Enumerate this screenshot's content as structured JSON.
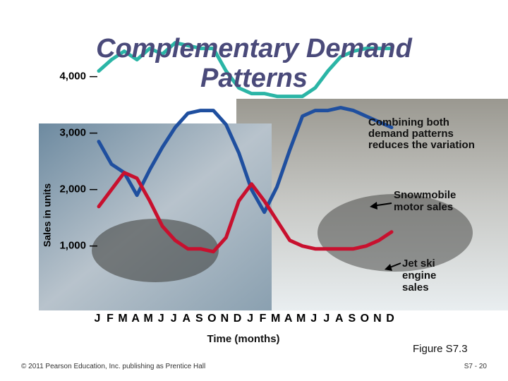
{
  "chart_data": {
    "type": "line",
    "title": "Complementary Demand Patterns",
    "y_label": "Sales in units",
    "x_label": "Time (months)",
    "annotation": "Combining both demand patterns reduces the variation",
    "categories": [
      "J",
      "F",
      "M",
      "A",
      "M",
      "J",
      "J",
      "A",
      "S",
      "O",
      "N",
      "D",
      "J",
      "F",
      "M",
      "A",
      "M",
      "J",
      "J",
      "A",
      "S",
      "O",
      "N",
      "D"
    ],
    "series": [
      {
        "color": "#2bb5a6",
        "values": [
          4100,
          4300,
          4450,
          4300,
          4500,
          4400,
          4600,
          4550,
          4500,
          4500,
          4100,
          3800,
          3700,
          3700,
          3650,
          3650,
          3650,
          3800,
          4100,
          4350,
          4450,
          4500,
          4500,
          4500
        ]
      },
      {
        "name": "Snowmobile motor sales",
        "color": "#1f4f9f",
        "values": [
          2850,
          2450,
          2300,
          1900,
          2350,
          2750,
          3100,
          3350,
          3400,
          3400,
          3150,
          2650,
          2000,
          1600,
          2050,
          2700,
          3300,
          3400,
          3400,
          3450,
          3400,
          3300,
          3200,
          3100
        ]
      },
      {
        "name": "Jet ski engine sales",
        "color": "#c8102e",
        "values": [
          1700,
          2000,
          2300,
          2200,
          1800,
          1350,
          1100,
          950,
          950,
          900,
          1150,
          1800,
          2100,
          1800,
          1450,
          1100,
          1000,
          950,
          950,
          950,
          950,
          1000,
          1100,
          1250
        ]
      }
    ],
    "ylim": [
      0,
      5000
    ],
    "yticks": [
      {
        "value": 1000,
        "label": "1,000"
      },
      {
        "value": 2000,
        "label": "2,000"
      },
      {
        "value": 3000,
        "label": "3,000"
      },
      {
        "value": 4000,
        "label": "4,000"
      }
    ],
    "figure": "Figure S7.3",
    "copyright": "© 2011 Pearson Education, Inc. publishing as Prentice Hall",
    "page": "S7 - 20"
  }
}
